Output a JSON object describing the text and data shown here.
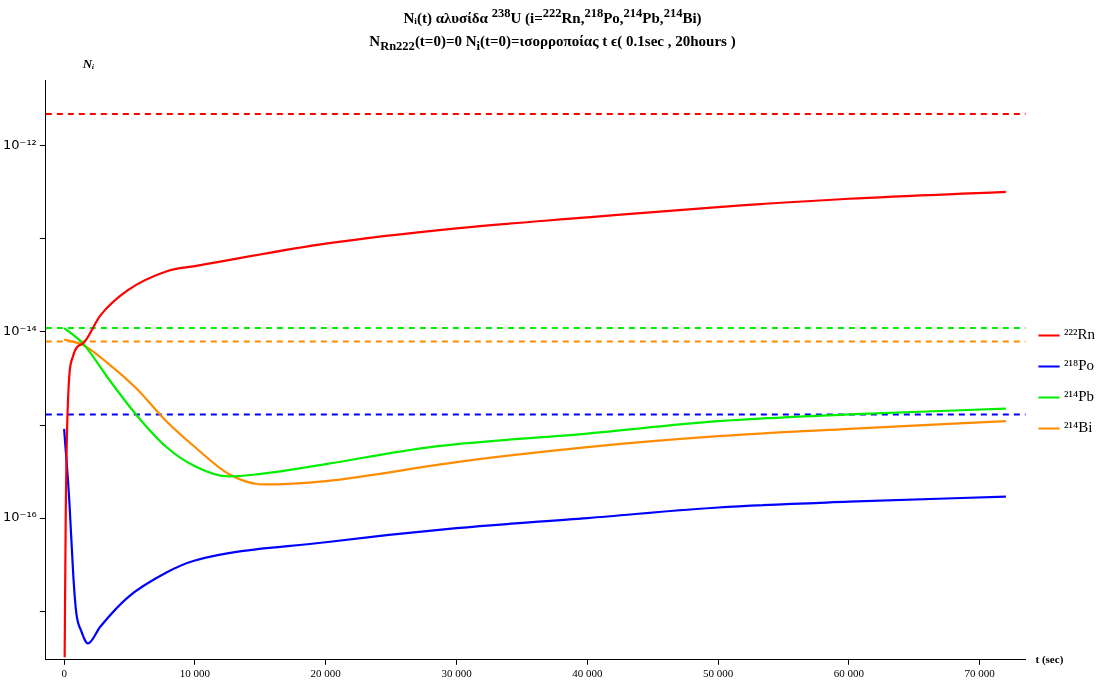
{
  "chart_data": {
    "type": "line",
    "title": "Nᵢ(t) αλυσίδα $^{238}$U   (i=$^{222}$Rn,$^{218}$Po,$^{214}$Pb,$^{214}$Bi)",
    "subtitle": "N$_{Rn222}$(t=0)=0 N$_{i}$(t=0)=ισορροποίας t ϵ( 0.1sec , 20hours )",
    "xlabel": "t (sec)",
    "ylabel": "Nᵢ",
    "log": "y",
    "grid": false,
    "legend": "right",
    "marker": "none",
    "line_style": "solid",
    "xlim": [
      -1400,
      73500
    ],
    "ylim": [
      3.1e-18,
      5.1e-12
    ],
    "xticks": [
      0,
      {
        "value": 10000,
        "label": "10 000"
      },
      {
        "value": 20000,
        "label": "20 000"
      },
      {
        "value": 30000,
        "label": "30 000"
      },
      {
        "value": 40000,
        "label": "40 000"
      },
      {
        "value": 50000,
        "label": "50 000"
      },
      {
        "value": 60000,
        "label": "60 000"
      },
      {
        "value": 70000,
        "label": "70 000"
      }
    ],
    "yticks": [
      {
        "value": 1e-17,
        "label": null
      },
      {
        "value": 1e-16,
        "label": "10⁻¹⁶"
      },
      {
        "value": 1e-15,
        "label": null
      },
      {
        "value": 1e-14,
        "label": "10⁻¹⁴"
      },
      {
        "value": 1e-13,
        "label": null
      },
      {
        "value": 1e-12,
        "label": "10⁻¹²"
      }
    ],
    "series": [
      {
        "name": "²²²Rn",
        "color": "#ff0000",
        "x": [
          40,
          120,
          250,
          680,
          1480,
          2760,
          4850,
          7850,
          10000,
          20000,
          30000,
          40000,
          50000,
          60000,
          72000
        ],
        "values": [
          3.2e-18,
          1e-16,
          1.2e-15,
          5.5e-15,
          7.6e-15,
          1.5e-14,
          2.8e-14,
          4.5e-14,
          5.1e-14,
          8.9e-14,
          1.3e-13,
          1.7e-13,
          2.2e-13,
          2.7e-13,
          3.2e-13
        ]
      },
      {
        "name": "²¹⁸Po",
        "color": "#0000ff",
        "x": [
          0,
          400,
          700,
          930,
          1290,
          1820,
          2760,
          4850,
          7820,
          10000,
          20000,
          30000,
          40000,
          50000,
          60000,
          72000
        ],
        "values": [
          9.1e-16,
          1.5e-16,
          2.4e-17,
          9.5e-18,
          6.2e-18,
          4.5e-18,
          6.8e-18,
          1.4e-17,
          2.6e-17,
          3.5e-17,
          5.5e-17,
          7.8e-17,
          1e-16,
          1.3e-16,
          1.5e-16,
          1.7e-16
        ]
      },
      {
        "name": "²¹⁴Pb",
        "color": "#00ee00",
        "x": [
          0,
          400,
          1480,
          3350,
          5490,
          7820,
          10000,
          12550,
          16700,
          20000,
          28000,
          40000,
          50000,
          60000,
          72000
        ],
        "values": [
          1.1e-14,
          1e-14,
          7.4e-15,
          3.2e-15,
          1.3e-15,
          5.8e-16,
          3.6e-16,
          2.8e-16,
          3.2e-16,
          3.8e-16,
          5.8e-16,
          8.1e-16,
          1.1e-15,
          1.3e-15,
          1.5e-15
        ]
      },
      {
        "name": "²¹⁴Bi",
        "color": "#ff8c00",
        "x": [
          0,
          1480,
          3350,
          5490,
          7820,
          10000,
          12550,
          15250,
          20000,
          30000,
          40000,
          50000,
          60000,
          72000
        ],
        "values": [
          8.3e-15,
          7.2e-15,
          4.6e-15,
          2.5e-15,
          1.1e-15,
          5.8e-16,
          3e-16,
          2.3e-16,
          2.5e-16,
          4e-16,
          5.8e-16,
          7.6e-16,
          9.1e-16,
          1.1e-15
        ]
      }
    ],
    "ref_lines": [
      {
        "axis": "y",
        "value": 2.2e-12,
        "color": "#ff0000",
        "line_style": "dashed"
      },
      {
        "axis": "y",
        "value": 1.1e-14,
        "color": "#00ee00",
        "line_style": "dashed"
      },
      {
        "axis": "y",
        "value": 7.9e-15,
        "color": "#ff8c00",
        "line_style": "dashed"
      },
      {
        "axis": "y",
        "value": 1.3e-15,
        "color": "#0000ff",
        "line_style": "dashed"
      }
    ]
  }
}
